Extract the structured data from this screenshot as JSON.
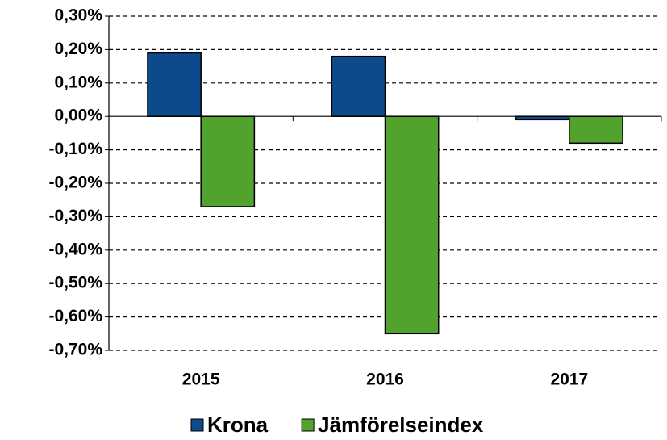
{
  "chart_data": {
    "type": "bar",
    "categories": [
      "2015",
      "2016",
      "2017"
    ],
    "series": [
      {
        "name": "Krona",
        "color": "#0d4a8c",
        "values": [
          0.19,
          0.18,
          -0.01
        ]
      },
      {
        "name": "Jämförelseindex",
        "color": "#52a32d",
        "values": [
          -0.27,
          -0.65,
          -0.08
        ]
      }
    ],
    "ylim": [
      -0.7,
      0.3
    ],
    "yticks": [
      {
        "value": 0.3,
        "label": "0,30%"
      },
      {
        "value": 0.2,
        "label": "0,20%"
      },
      {
        "value": 0.1,
        "label": "0,10%"
      },
      {
        "value": 0,
        "label": "0,00%"
      },
      {
        "value": -0.1,
        "label": "-0,10%"
      },
      {
        "value": -0.2,
        "label": "-0,20%"
      },
      {
        "value": -0.3,
        "label": "-0,30%"
      },
      {
        "value": -0.4,
        "label": "-0,40%"
      },
      {
        "value": -0.5,
        "label": "-0,50%"
      },
      {
        "value": -0.6,
        "label": "-0,60%"
      },
      {
        "value": -0.7,
        "label": "-0,70%"
      }
    ],
    "grid": true,
    "legend": "bottom"
  }
}
